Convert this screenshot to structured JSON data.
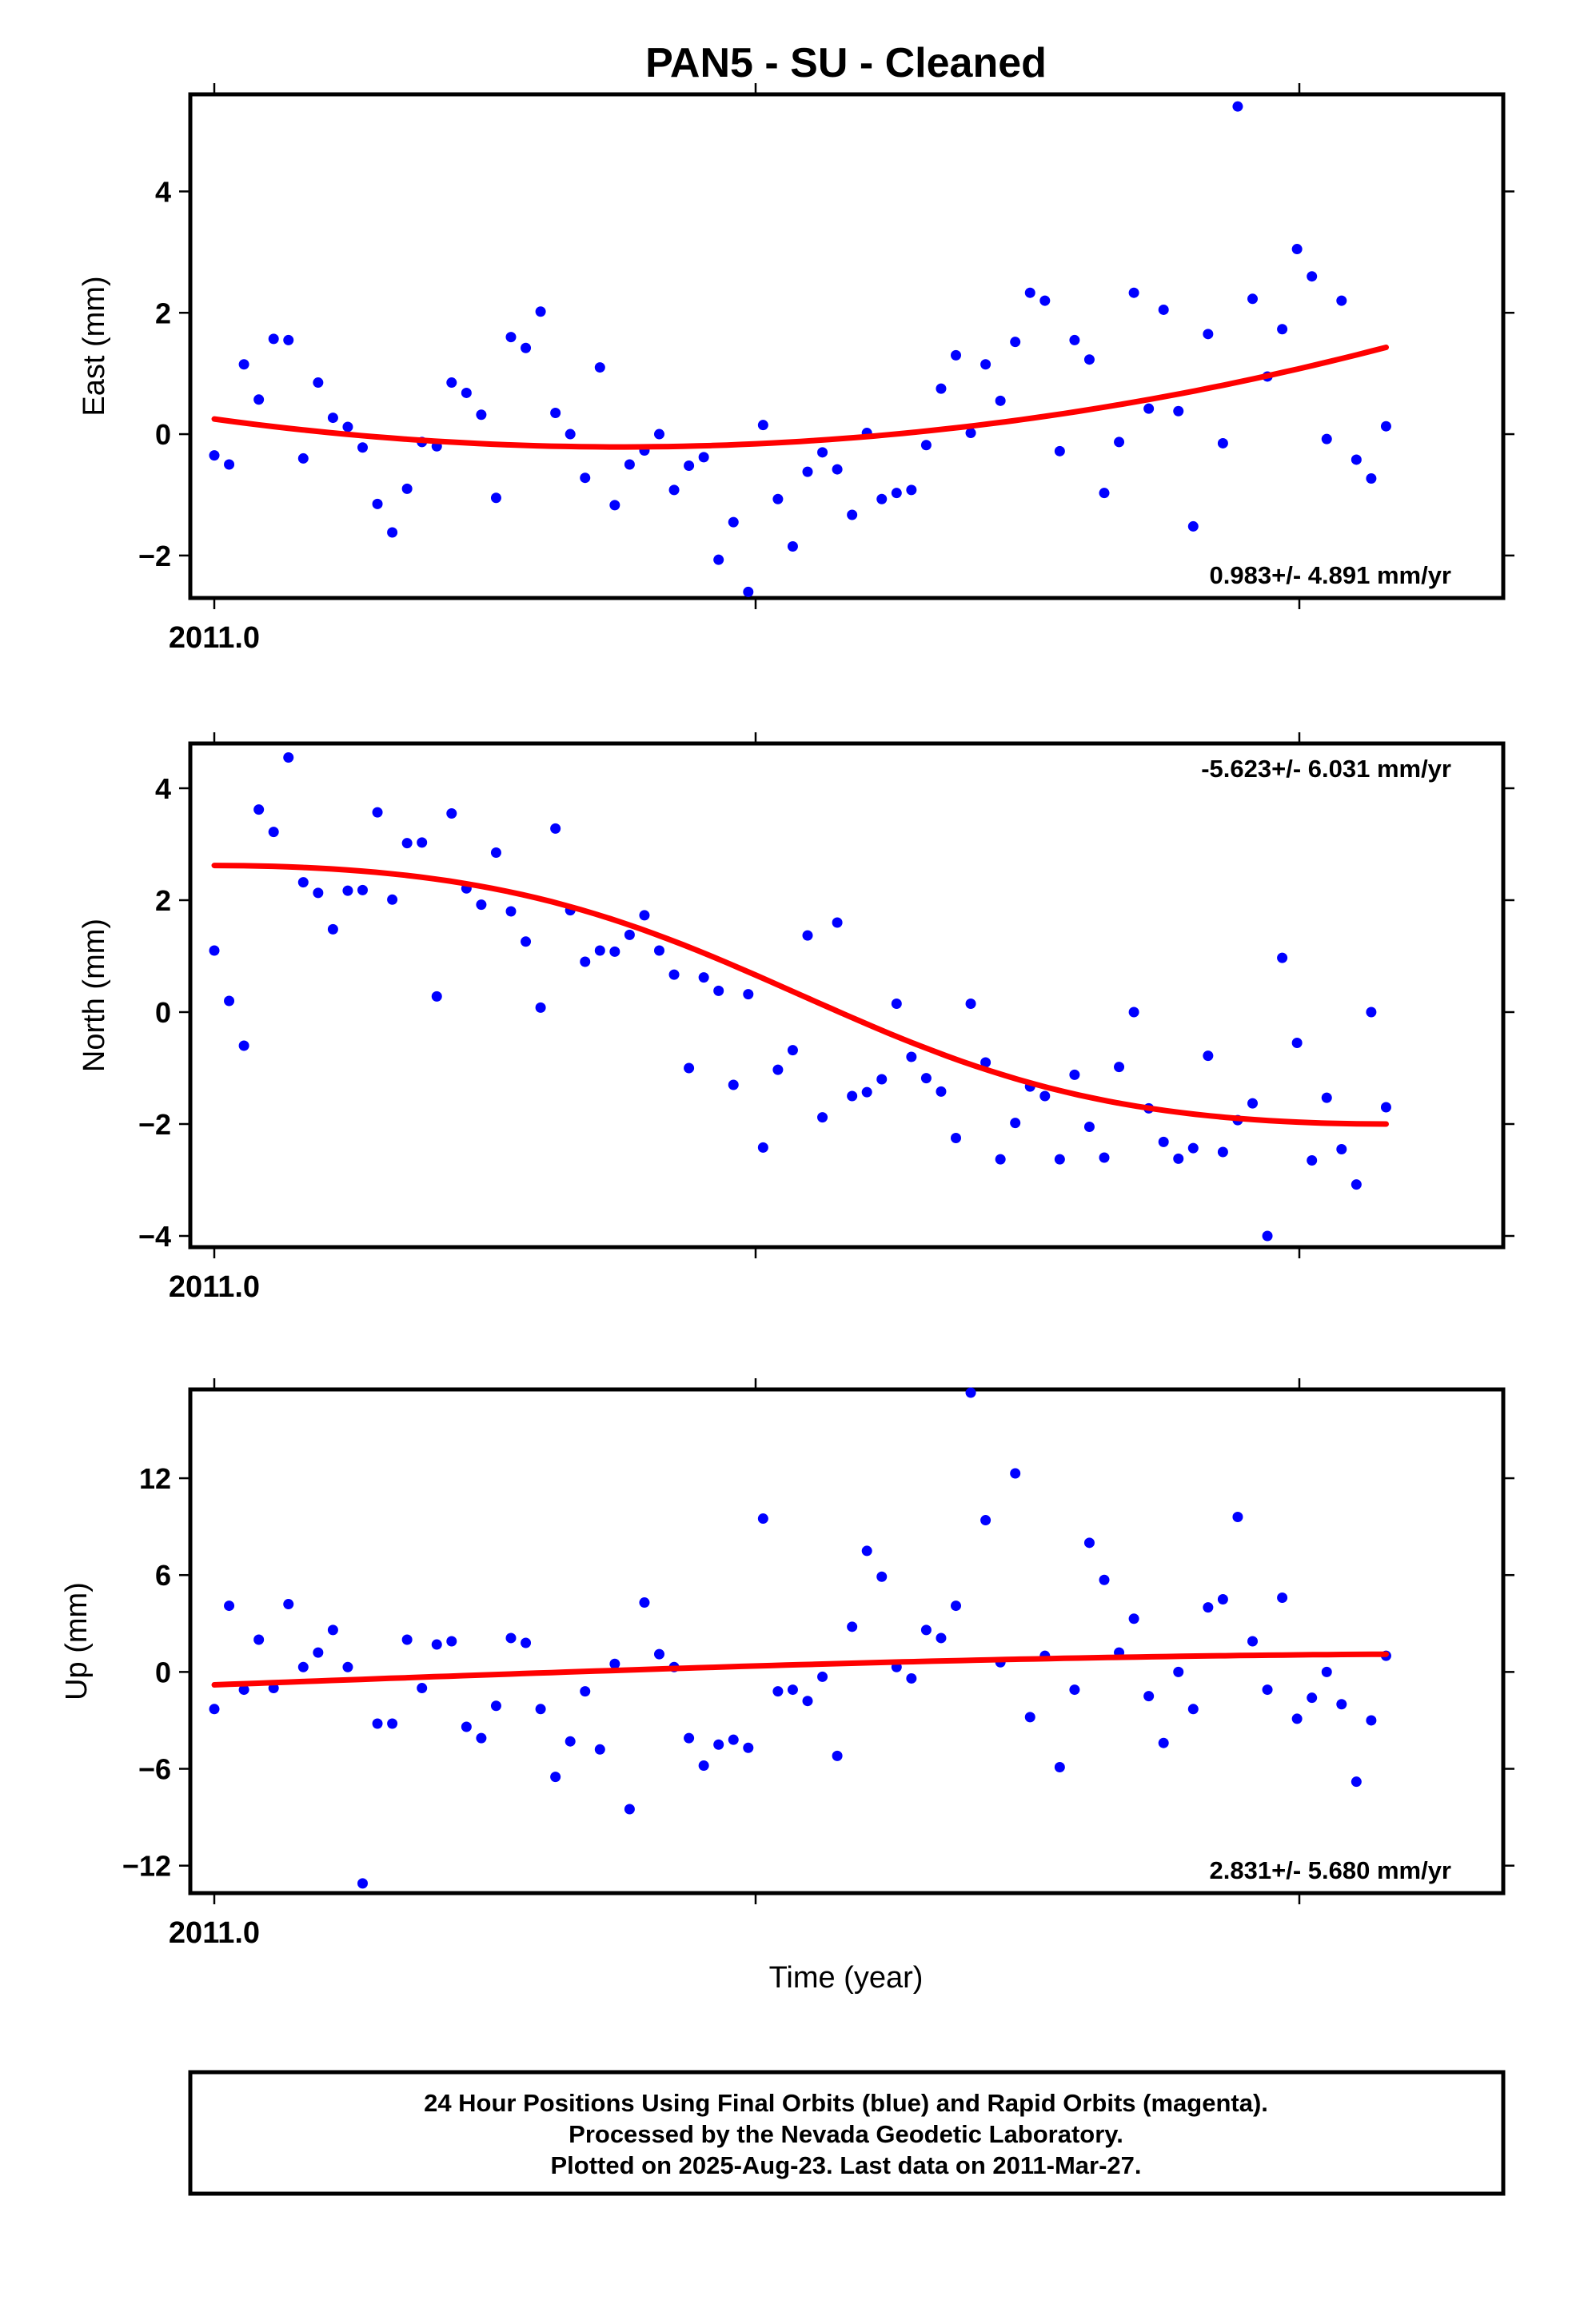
{
  "title": "PAN5  - SU - Cleaned",
  "xlabel": "Time (year)",
  "footer": {
    "line1": "24 Hour Positions Using Final Orbits (blue) and Rapid Orbits (magenta).",
    "line2": "Processed by the Nevada Geodetic Laboratory.",
    "line3": "Plotted on 2025-Aug-23. Last data on 2011-Mar-27."
  },
  "colors": {
    "final_points": "#0000ff",
    "fit_line": "#ff0000",
    "frame": "#000000"
  },
  "chart_data": [
    {
      "type": "scatter",
      "name": "East",
      "ylabel": "East (mm)",
      "xtick_label": "2011.0",
      "ylim": [
        -2.7,
        5.6
      ],
      "yticks": [
        -2,
        0,
        2,
        4
      ],
      "ytick_labels": [
        "−2",
        "0",
        "2",
        "4"
      ],
      "rate": "0.983+/- 4.891 mm/yr",
      "rate_position": "bottom-right",
      "y": [
        -0.35,
        -0.5,
        1.15,
        0.57,
        1.57,
        1.55,
        -0.4,
        0.85,
        0.27,
        0.12,
        -0.22,
        -1.15,
        -1.62,
        -0.9,
        -0.13,
        -0.2,
        0.85,
        0.68,
        0.32,
        -1.05,
        1.6,
        1.42,
        2.02,
        0.35,
        0.0,
        -0.72,
        1.1,
        -1.17,
        -0.5,
        -0.27,
        0.0,
        -0.92,
        -0.52,
        -0.38,
        -2.07,
        -1.45,
        -2.6,
        0.15,
        -1.07,
        -1.85,
        -0.62,
        -0.3,
        -0.58,
        -1.33,
        0.02,
        -1.07,
        -0.97,
        -0.92,
        -0.18,
        0.75,
        1.3,
        0.02,
        1.15,
        0.55,
        1.52,
        2.33,
        2.2,
        -0.28,
        1.55,
        1.23,
        -0.97,
        -0.13,
        2.33,
        0.42,
        2.05,
        0.38,
        -1.52,
        1.65,
        -0.15,
        5.4,
        2.23,
        0.95,
        1.73,
        3.05,
        2.6,
        -0.08,
        2.2,
        -0.42,
        -0.73,
        0.13
      ],
      "fit": [
        0.25,
        -0.2,
        1.43
      ]
    },
    {
      "type": "scatter",
      "name": "North",
      "ylabel": "North (mm)",
      "xtick_label": "2011.0",
      "ylim": [
        -4.2,
        4.8
      ],
      "yticks": [
        -4,
        -2,
        0,
        2,
        4
      ],
      "ytick_labels": [
        "−4",
        "−2",
        "0",
        "2",
        "4"
      ],
      "rate": "-5.623+/- 6.031 mm/yr",
      "rate_position": "top-right",
      "y": [
        1.1,
        0.2,
        -0.6,
        3.62,
        3.22,
        4.55,
        2.32,
        2.13,
        1.48,
        2.17,
        2.18,
        3.57,
        2.01,
        3.02,
        3.03,
        0.28,
        3.55,
        2.21,
        1.92,
        2.85,
        1.8,
        1.26,
        0.08,
        3.28,
        1.82,
        0.9,
        1.1,
        1.08,
        1.38,
        1.73,
        1.1,
        0.67,
        -1.0,
        0.62,
        0.38,
        -1.3,
        0.32,
        -2.42,
        -1.03,
        -0.68,
        1.37,
        -1.88,
        1.6,
        -1.5,
        -1.43,
        -1.2,
        0.15,
        -0.8,
        -1.18,
        -1.42,
        -2.25,
        0.15,
        -0.9,
        -2.63,
        -1.98,
        -1.33,
        -1.5,
        -2.63,
        -1.12,
        -2.05,
        -2.6,
        -0.98,
        0.0,
        -1.72,
        -2.32,
        -2.62,
        -2.43,
        -0.78,
        -2.5,
        -1.93,
        -1.63,
        -4.0,
        0.97,
        -0.55,
        -2.65,
        -1.53,
        -2.45,
        -3.08,
        0.0,
        -1.7
      ],
      "fit": [
        2.62,
        -2.0
      ]
    },
    {
      "type": "scatter",
      "name": "Up",
      "ylabel": "Up (mm)",
      "xtick_label": "2011.0",
      "ylim": [
        -13.7,
        17.5
      ],
      "yticks": [
        -12,
        -6,
        0,
        6,
        12
      ],
      "ytick_labels": [
        "−12",
        "−6",
        "0",
        "6",
        "12"
      ],
      "rate": "2.831+/- 5.680 mm/yr",
      "rate_position": "bottom-right",
      "y": [
        -2.3,
        4.1,
        -1.1,
        2.0,
        -1.0,
        4.2,
        0.3,
        1.2,
        2.6,
        0.3,
        -13.1,
        -3.2,
        -3.2,
        2.0,
        -1.0,
        1.7,
        1.9,
        -3.4,
        -4.1,
        -2.1,
        2.1,
        1.8,
        -2.3,
        -6.5,
        -4.3,
        -1.2,
        -4.8,
        0.5,
        -8.5,
        4.3,
        1.1,
        0.3,
        -4.1,
        -5.8,
        -4.5,
        -4.2,
        -4.7,
        9.5,
        -1.2,
        -1.1,
        -1.8,
        -0.3,
        -5.2,
        2.8,
        7.5,
        5.9,
        0.3,
        -0.4,
        2.6,
        2.1,
        4.1,
        17.3,
        9.4,
        0.6,
        12.3,
        -2.8,
        1.0,
        -5.9,
        -1.1,
        8.0,
        5.7,
        1.2,
        3.3,
        -1.5,
        -4.4,
        0.0,
        -2.3,
        4.0,
        4.5,
        9.6,
        1.9,
        -1.1,
        4.6,
        -2.9,
        -1.6,
        0.0,
        -2.0,
        -6.8,
        -3.0,
        1.0
      ],
      "fit": [
        -0.8,
        1.1
      ]
    }
  ]
}
